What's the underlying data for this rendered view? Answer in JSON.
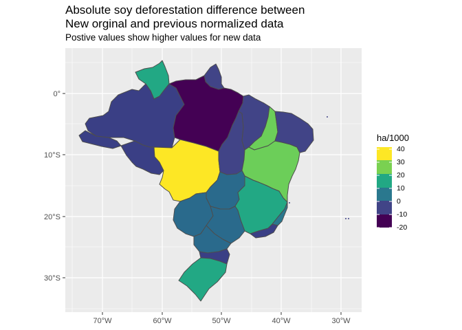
{
  "header": {
    "title_line1": "Absolute soy deforestation difference between",
    "title_line2": "New orginal and previous normalized data",
    "subtitle": "Postive values show higher values for new data"
  },
  "axes": {
    "x_ticks": [
      "70°W",
      "60°W",
      "50°W",
      "40°W",
      "30°W"
    ],
    "y_ticks": [
      "0°",
      "10°S",
      "20°S",
      "30°S"
    ]
  },
  "legend": {
    "title": "ha/1000",
    "labels": [
      "40",
      "30",
      "20",
      "10",
      "0",
      "-10",
      "-20"
    ],
    "colors": [
      "#fde725",
      "#7ad151",
      "#22a884",
      "#2a788e",
      "#414487",
      "#440154"
    ]
  },
  "regions": [
    {
      "name": "Roraima",
      "fill": "#22a884"
    },
    {
      "name": "Amapa",
      "fill": "#414487"
    },
    {
      "name": "Amazonas",
      "fill": "#3a3f85"
    },
    {
      "name": "Para",
      "fill": "#440154"
    },
    {
      "name": "Acre",
      "fill": "#3a3f85"
    },
    {
      "name": "Rondonia",
      "fill": "#3a3f85"
    },
    {
      "name": "Mato Grosso",
      "fill": "#fde725"
    },
    {
      "name": "Tocantins",
      "fill": "#414487"
    },
    {
      "name": "Maranhao",
      "fill": "#414487"
    },
    {
      "name": "Piaui",
      "fill": "#6cce59"
    },
    {
      "name": "Bahia",
      "fill": "#6cce59"
    },
    {
      "name": "Northeast",
      "fill": "#414487"
    },
    {
      "name": "Goias",
      "fill": "#2a6a8c"
    },
    {
      "name": "Minas Gerais",
      "fill": "#22a884"
    },
    {
      "name": "Espirito Santo",
      "fill": "#2a788e"
    },
    {
      "name": "Mato Grosso do Sul",
      "fill": "#2a6a8c"
    },
    {
      "name": "Sao Paulo",
      "fill": "#2a6a8c"
    },
    {
      "name": "Rio de Janeiro",
      "fill": "#3a3f85"
    },
    {
      "name": "Parana",
      "fill": "#2a6a8c"
    },
    {
      "name": "Santa Catarina",
      "fill": "#3a3f85"
    },
    {
      "name": "Rio Grande do Sul",
      "fill": "#22a884"
    }
  ]
}
